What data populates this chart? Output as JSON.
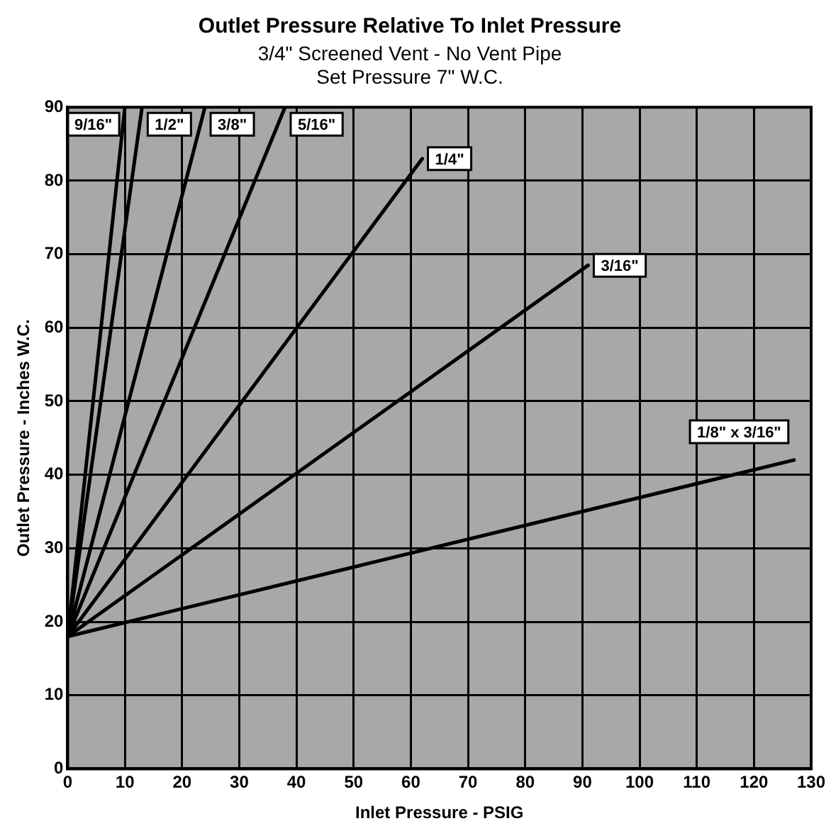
{
  "chart_data": {
    "type": "line",
    "title": "Outlet Pressure Relative To Inlet Pressure",
    "subtitle": "3/4\" Screened Vent - No Vent Pipe\nSet Pressure 7\" W.C.",
    "xlabel": "Inlet Pressure - PSIG",
    "ylabel": "Outlet Pressure - Inches W.C.",
    "xlim": [
      0,
      130
    ],
    "xticks": [
      0,
      10,
      20,
      30,
      40,
      50,
      60,
      70,
      80,
      90,
      100,
      110,
      120,
      130
    ],
    "ylim": [
      0,
      90
    ],
    "yticks": [
      0,
      10,
      20,
      30,
      40,
      50,
      60,
      70,
      80,
      90
    ],
    "grid": true,
    "legend": "top left",
    "marker": "none",
    "line_style": "solid",
    "series": [
      {
        "name": "9/16\"",
        "color": "#000000",
        "x": [
          0,
          10
        ],
        "values": [
          18,
          90
        ]
      },
      {
        "name": "1/2\"",
        "color": "#000000",
        "x": [
          0,
          13
        ],
        "values": [
          18,
          90
        ]
      },
      {
        "name": "3/8\"",
        "color": "#000000",
        "x": [
          0,
          24
        ],
        "values": [
          18,
          90
        ]
      },
      {
        "name": "5/16\"",
        "color": "#000000",
        "x": [
          0,
          38
        ],
        "values": [
          18,
          90
        ]
      },
      {
        "name": "1/4\"",
        "color": "#000000",
        "x": [
          0,
          62
        ],
        "values": [
          18,
          83
        ]
      },
      {
        "name": "3/16\"",
        "color": "#000000",
        "x": [
          0,
          91
        ],
        "values": [
          18,
          68.5
        ]
      },
      {
        "name": "1/8\" x 3/16\"",
        "color": "#000000",
        "x": [
          0,
          127
        ],
        "values": [
          18,
          42
        ]
      }
    ]
  }
}
